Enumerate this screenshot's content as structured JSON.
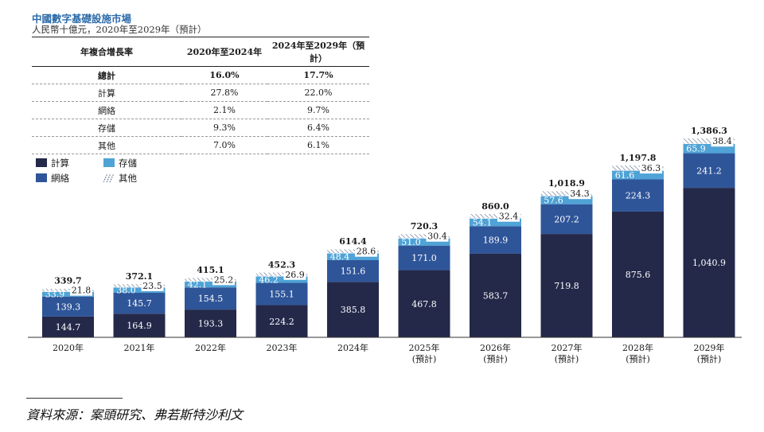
{
  "header": {
    "title": "中國數字基礎設施市場",
    "subtitle": "人民幣十億元，2020年至2029年（預計）"
  },
  "cagr_table": {
    "headers": [
      "年複合增長率",
      "2020年至2024年",
      "2024年至2029年（預計）"
    ],
    "rows": [
      {
        "label": "總計",
        "a": "16.0%",
        "b": "17.7%"
      },
      {
        "label": "計算",
        "a": "27.8%",
        "b": "22.0%"
      },
      {
        "label": "網絡",
        "a": "2.1%",
        "b": "9.7%"
      },
      {
        "label": "存儲",
        "a": "9.3%",
        "b": "6.4%"
      },
      {
        "label": "其他",
        "a": "7.0%",
        "b": "6.1%"
      }
    ]
  },
  "legend": {
    "compute": "計算",
    "network": "網絡",
    "storage": "存儲",
    "other": "其他"
  },
  "colors": {
    "compute": "#24294a",
    "network": "#2f5599",
    "storage": "#4fa3d6",
    "other_hatch": "#5b6b8a"
  },
  "chart_data": {
    "type": "bar",
    "stacked": true,
    "categories": [
      "2020年",
      "2021年",
      "2022年",
      "2023年",
      "2024年",
      "2025年",
      "2026年",
      "2027年",
      "2028年",
      "2029年"
    ],
    "category_sublabels": [
      "",
      "",
      "",
      "",
      "",
      "(預計)",
      "(預計)",
      "(預計)",
      "(預計)",
      "(預計)"
    ],
    "series": [
      {
        "name": "計算",
        "values": [
          144.7,
          164.9,
          193.3,
          224.2,
          385.8,
          467.8,
          583.7,
          719.8,
          875.6,
          1040.9
        ]
      },
      {
        "name": "網絡",
        "values": [
          139.3,
          145.7,
          154.5,
          155.1,
          151.6,
          171.0,
          189.9,
          207.2,
          224.3,
          241.2
        ]
      },
      {
        "name": "存儲",
        "values": [
          33.9,
          38.0,
          42.1,
          46.2,
          48.4,
          51.0,
          54.1,
          57.6,
          61.6,
          65.9
        ]
      },
      {
        "name": "其他",
        "values": [
          21.8,
          23.5,
          25.2,
          26.9,
          28.6,
          30.4,
          32.4,
          34.3,
          36.3,
          38.4
        ]
      }
    ],
    "totals": [
      339.7,
      372.1,
      415.1,
      452.3,
      614.4,
      720.3,
      860.0,
      1018.9,
      1197.8,
      1386.3
    ],
    "total_labels": [
      "339.7",
      "372.1",
      "415.1",
      "452.3",
      "614.4",
      "720.3",
      "860.0",
      "1,018.9",
      "1,197.8",
      "1,386.3"
    ],
    "value_labels": {
      "計算": [
        "144.7",
        "164.9",
        "193.3",
        "224.2",
        "385.8",
        "467.8",
        "583.7",
        "719.8",
        "875.6",
        "1,040.9"
      ],
      "網絡": [
        "139.3",
        "145.7",
        "154.5",
        "155.1",
        "151.6",
        "171.0",
        "189.9",
        "207.2",
        "224.3",
        "241.2"
      ],
      "存儲": [
        "33.9",
        "38.0",
        "42.1",
        "46.2",
        "48.4",
        "51.0",
        "54.1",
        "57.6",
        "61.6",
        "65.9"
      ],
      "其他": [
        "21.8",
        "23.5",
        "25.2",
        "26.9",
        "28.6",
        "30.4",
        "32.4",
        "34.3",
        "36.3",
        "38.4"
      ]
    },
    "legend_position": "top-left",
    "grid": false
  },
  "footer": {
    "source": "資料來源：案頭研究、弗若斯特沙利文"
  }
}
